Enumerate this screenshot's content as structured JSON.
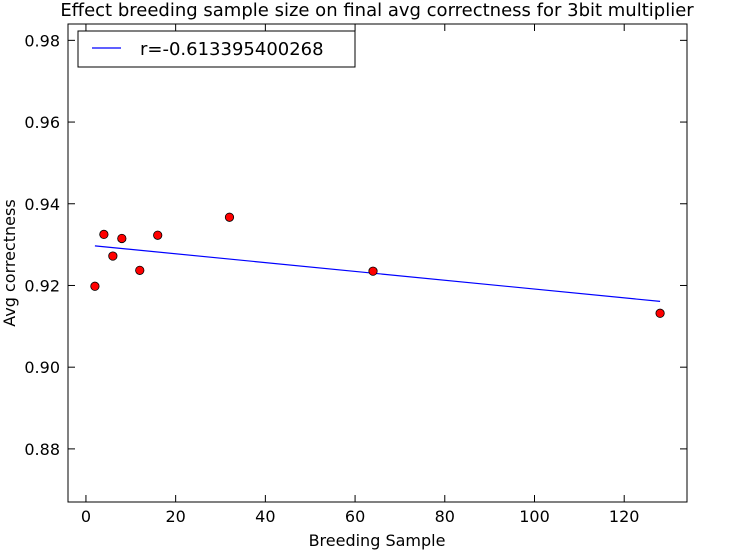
{
  "chart_data": {
    "type": "scatter",
    "title": "Effect breeding sample size on final avg correctness for 3bit multiplier",
    "xlabel": "Breeding Sample",
    "ylabel": "Avg correctness",
    "xlim": [
      -4,
      134
    ],
    "ylim": [
      0.867,
      0.984
    ],
    "x_ticks": [
      0,
      20,
      40,
      60,
      80,
      100,
      120
    ],
    "y_ticks": [
      0.88,
      0.9,
      0.92,
      0.94,
      0.96,
      0.98
    ],
    "x_tick_labels": [
      "0",
      "20",
      "40",
      "60",
      "80",
      "100",
      "120"
    ],
    "y_tick_labels": [
      "0.88",
      "0.90",
      "0.92",
      "0.94",
      "0.96",
      "0.98"
    ],
    "grid": false,
    "legend_position": "top-left",
    "points": {
      "color": "#ff0000",
      "x": [
        2,
        4,
        6,
        8,
        12,
        16,
        32,
        64,
        128
      ],
      "y": [
        0.9198,
        0.9325,
        0.9272,
        0.9315,
        0.9237,
        0.9323,
        0.9367,
        0.9235,
        0.9132
      ]
    },
    "fit_line": {
      "name": "r=-0.613395400268",
      "color": "#0000ff",
      "x": [
        2,
        128
      ],
      "y": [
        0.9297,
        0.9161
      ]
    }
  }
}
